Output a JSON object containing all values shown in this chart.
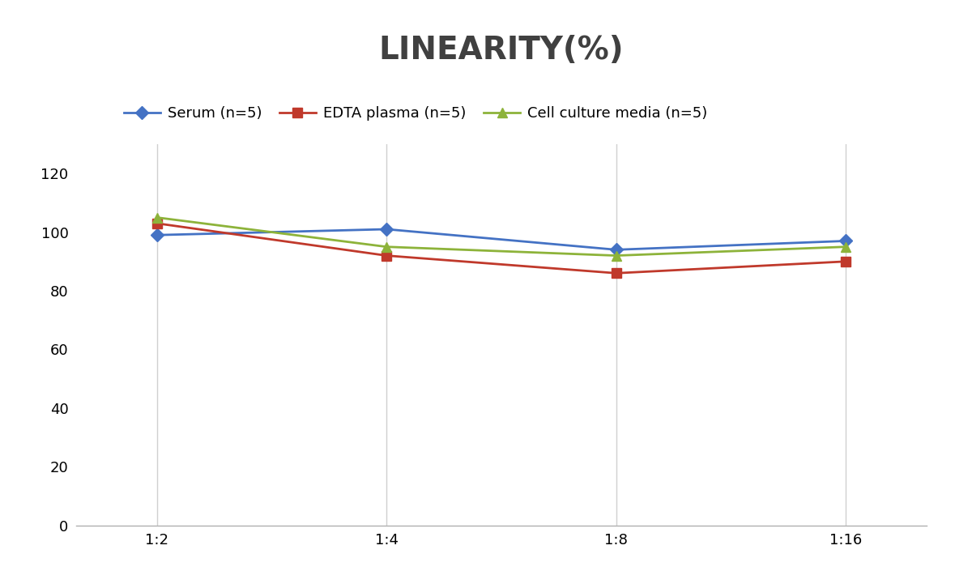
{
  "title": "LINEARITY(%)",
  "title_fontsize": 28,
  "title_fontweight": "bold",
  "title_color": "#404040",
  "x_labels": [
    "1:2",
    "1:4",
    "1:8",
    "1:16"
  ],
  "x_positions": [
    0,
    1,
    2,
    3
  ],
  "series": [
    {
      "name": "Serum (n=5)",
      "values": [
        99,
        101,
        94,
        97
      ],
      "color": "#4472C4",
      "marker": "D",
      "marker_size": 8,
      "linewidth": 2
    },
    {
      "name": "EDTA plasma (n=5)",
      "values": [
        103,
        92,
        86,
        90
      ],
      "color": "#C0392B",
      "marker": "s",
      "marker_size": 8,
      "linewidth": 2
    },
    {
      "name": "Cell culture media (n=5)",
      "values": [
        105,
        95,
        92,
        95
      ],
      "color": "#8DB33A",
      "marker": "^",
      "marker_size": 8,
      "linewidth": 2
    }
  ],
  "ylim": [
    0,
    130
  ],
  "yticks": [
    0,
    20,
    40,
    60,
    80,
    100,
    120
  ],
  "background_color": "#ffffff",
  "grid_color": "#d0d0d0",
  "legend_fontsize": 13,
  "tick_fontsize": 13
}
